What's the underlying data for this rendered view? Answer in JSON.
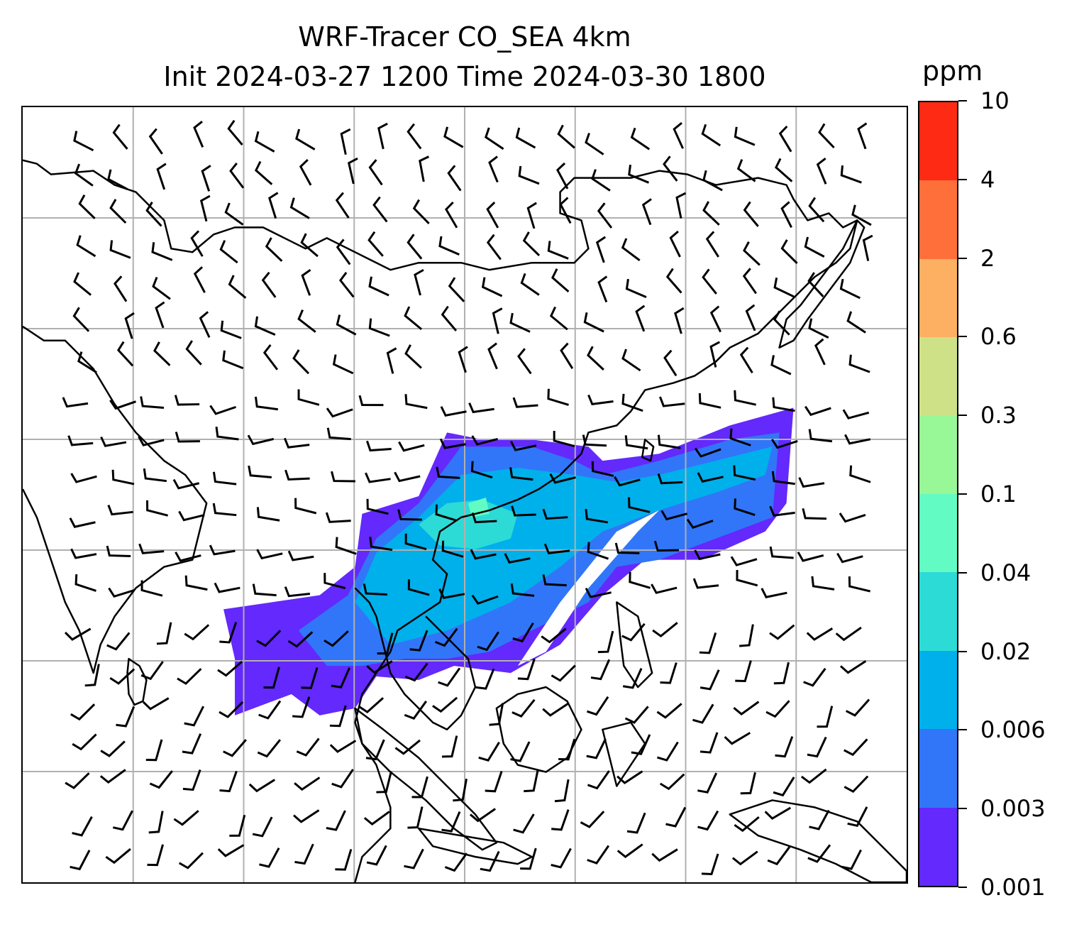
{
  "title": {
    "line1": "WRF-Tracer CO_SEA 4km",
    "line2": "Init 2024-03-27 1200 Time 2024-03-30 1800"
  },
  "map": {
    "gridlines": "on",
    "grid_color": "#b0b0b0",
    "coastline_color": "#000000",
    "wind_barbs": "on"
  },
  "colorbar": {
    "unit": "ppm",
    "ticks": [
      "10",
      "4",
      "2",
      "0.6",
      "0.3",
      "0.1",
      "0.04",
      "0.02",
      "0.006",
      "0.003",
      "0.001"
    ],
    "colors": [
      "#ff2a14",
      "#ff6f3a",
      "#fdaf62",
      "#cfe187",
      "#98f796",
      "#62fbc3",
      "#2ddbd6",
      "#00b0eb",
      "#3176f8",
      "#6329fd"
    ]
  },
  "chart_data": {
    "type": "heatmap",
    "title": "WRF-Tracer CO_SEA 4km\nInit 2024-03-27 1200 Time 2024-03-30 1800",
    "colorbar_label": "ppm",
    "levels": [
      0.001,
      0.003,
      0.006,
      0.02,
      0.04,
      0.1,
      0.3,
      0.6,
      2,
      4,
      10
    ],
    "colors": [
      "#6329fd",
      "#3176f8",
      "#00b0eb",
      "#2ddbd6",
      "#62fbc3",
      "#98f796",
      "#cfe187",
      "#fdaf62",
      "#ff6f3a",
      "#ff2a14"
    ],
    "xlabel": "",
    "ylabel": ""
  }
}
